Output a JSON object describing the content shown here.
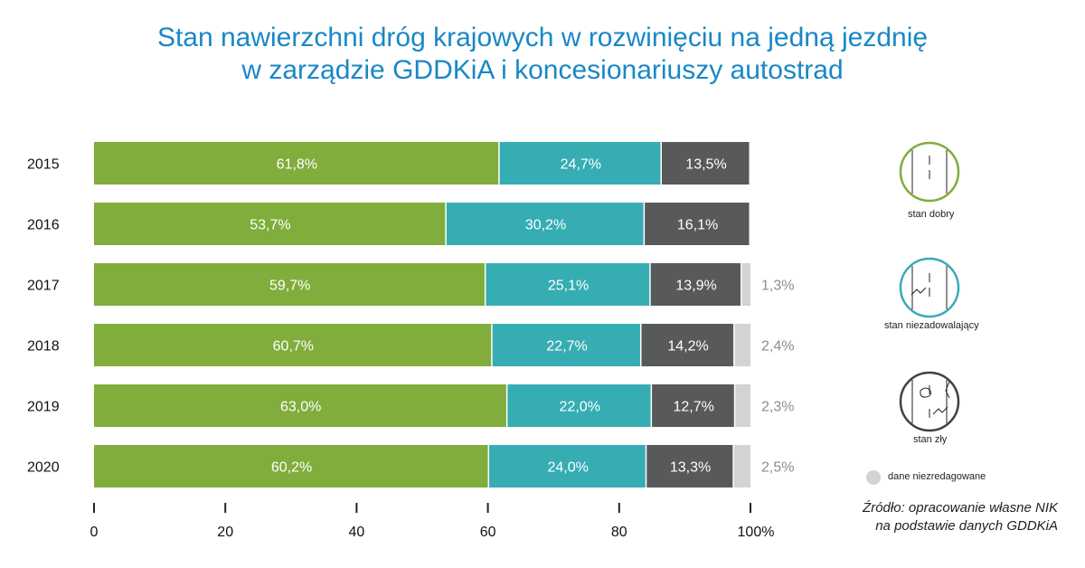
{
  "title": {
    "line1": "Stan nawierzchni dróg krajowych w rozwinięciu na jedną jezdnię",
    "line2": "w zarządzie GDDKiA i koncesionariuszy autostrad"
  },
  "chart_data": {
    "type": "bar",
    "orientation": "horizontal",
    "stacked": true,
    "categories": [
      "2015",
      "2016",
      "2017",
      "2018",
      "2019",
      "2020"
    ],
    "series": [
      {
        "name": "stan dobry",
        "color": "#80ad3c",
        "values": [
          61.8,
          53.7,
          59.7,
          60.7,
          63.0,
          60.2
        ],
        "labels": [
          "61,8%",
          "53,7%",
          "59,7%",
          "60,7%",
          "63,0%",
          "60,2%"
        ]
      },
      {
        "name": "stan niezadowalający",
        "color": "#36adb3",
        "values": [
          24.7,
          30.2,
          25.1,
          22.7,
          22.0,
          24.0
        ],
        "labels": [
          "24,7%",
          "30,2%",
          "25,1%",
          "22,7%",
          "22,0%",
          "24,0%"
        ]
      },
      {
        "name": "stan zły",
        "color": "#58595b",
        "values": [
          13.5,
          16.1,
          13.9,
          14.2,
          12.7,
          13.3
        ],
        "labels": [
          "13,5%",
          "16,1%",
          "13,9%",
          "14,2%",
          "12,7%",
          "13,3%"
        ]
      },
      {
        "name": "dane niezredagowane",
        "color": "#d1d3d4",
        "values": [
          0,
          0,
          1.3,
          2.4,
          2.3,
          2.5
        ],
        "labels": [
          "",
          "",
          "1,3%",
          "2,4%",
          "2,3%",
          "2,5%"
        ]
      }
    ],
    "xaxis": {
      "ticks": [
        0,
        20,
        40,
        60,
        80,
        100
      ],
      "tick_labels": [
        "0",
        "20",
        "40",
        "60",
        "80",
        "100%"
      ],
      "range": [
        0,
        100
      ]
    },
    "legend": [
      "stan dobry",
      "stan niezadowalający",
      "stan zły",
      "dane niezredagowane"
    ],
    "legend_position": "right"
  },
  "source": {
    "line1": "Źródło: opracowanie własne NIK",
    "line2": "na podstawie danych GDDKiA"
  }
}
